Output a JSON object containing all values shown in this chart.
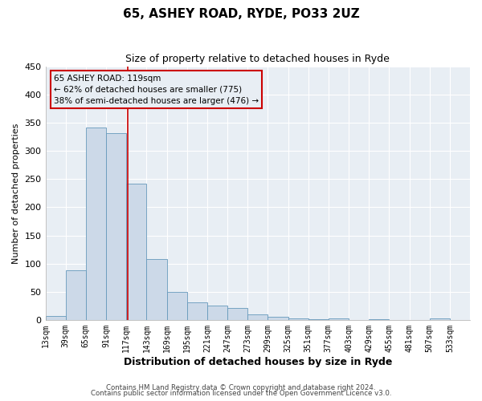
{
  "title": "65, ASHEY ROAD, RYDE, PO33 2UZ",
  "subtitle": "Size of property relative to detached houses in Ryde",
  "xlabel": "Distribution of detached houses by size in Ryde",
  "ylabel": "Number of detached properties",
  "bar_color": "#ccd9e8",
  "bar_edge_color": "#6699bb",
  "plot_bg_color": "#e8eef4",
  "figure_bg_color": "#ffffff",
  "grid_color": "#ffffff",
  "vline_x": 119,
  "vline_color": "#cc0000",
  "annotation_title": "65 ASHEY ROAD: 119sqm",
  "annotation_line1": "← 62% of detached houses are smaller (775)",
  "annotation_line2": "38% of semi-detached houses are larger (476) →",
  "annotation_box_edge": "#cc0000",
  "bin_edges": [
    13,
    39,
    65,
    91,
    117,
    143,
    169,
    195,
    221,
    247,
    273,
    299,
    325,
    351,
    377,
    403,
    429,
    455,
    481,
    507,
    533,
    559
  ],
  "bar_heights": [
    7,
    88,
    342,
    332,
    242,
    108,
    49,
    31,
    25,
    21,
    10,
    5,
    3,
    1,
    2,
    0,
    1,
    0,
    0,
    2,
    0
  ],
  "ylim": [
    0,
    450
  ],
  "yticks": [
    0,
    50,
    100,
    150,
    200,
    250,
    300,
    350,
    400,
    450
  ],
  "footer_line1": "Contains HM Land Registry data © Crown copyright and database right 2024.",
  "footer_line2": "Contains public sector information licensed under the Open Government Licence v3.0."
}
